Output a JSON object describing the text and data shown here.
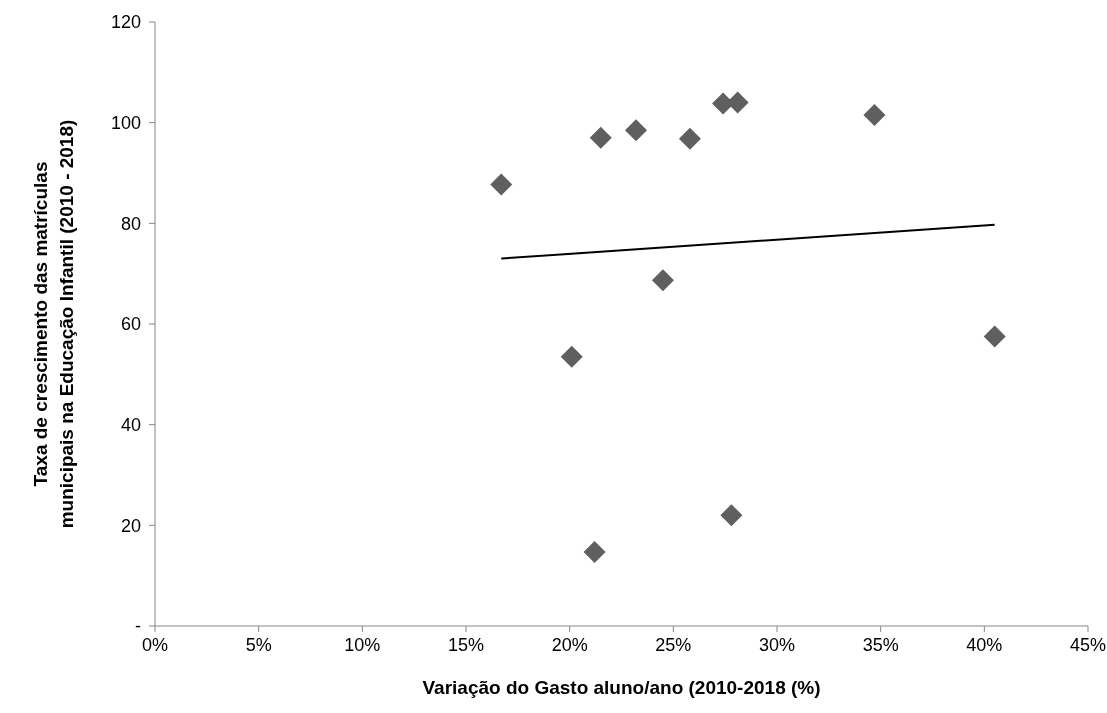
{
  "chart_data": {
    "type": "scatter",
    "xlabel": "Variação do Gasto aluno/ano (2010-2018 (%)",
    "ylabel": "Taxa de crescimento das matrículas municipais na Educação Infantil (2010 - 2018)",
    "series": [
      {
        "color": "#5f5f5f",
        "marker": "diamond",
        "x": [
          16.7,
          21.5,
          23.2,
          25.8,
          27.4,
          28.1,
          34.7,
          24.5,
          20.1,
          21.2,
          27.8,
          40.5
        ],
        "values": [
          87.7,
          97.0,
          98.5,
          96.8,
          103.8,
          104.0,
          101.5,
          68.7,
          53.5,
          14.7,
          22.0,
          57.5
        ]
      },
      {
        "type": "line",
        "color": "#000000",
        "marker": "none",
        "x": [
          16.7,
          40.5
        ],
        "values": [
          73.0,
          79.7
        ]
      }
    ],
    "xlim": [
      0,
      45
    ],
    "xticks": [
      {
        "value": 0,
        "label": "0%"
      },
      {
        "value": 5,
        "label": "5%"
      },
      {
        "value": 10,
        "label": "10%"
      },
      {
        "value": 15,
        "label": "15%"
      },
      {
        "value": 20,
        "label": "20%"
      },
      {
        "value": 25,
        "label": "25%"
      },
      {
        "value": 30,
        "label": "30%"
      },
      {
        "value": 35,
        "label": "35%"
      },
      {
        "value": 40,
        "label": "40%"
      },
      {
        "value": 45,
        "label": "45%"
      }
    ],
    "ylim": [
      0,
      120
    ],
    "yticks": [
      {
        "value": 0,
        "label": "-"
      },
      20,
      40,
      60,
      80,
      100,
      120
    ],
    "grid": false,
    "legend": false
  }
}
